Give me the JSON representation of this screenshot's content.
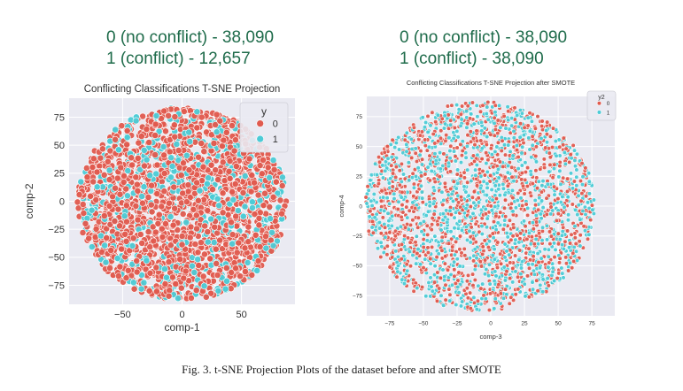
{
  "counts": {
    "left": {
      "line1": "0 (no conflict) - 38,090",
      "line2": "1 (conflict) - 12,657"
    },
    "right": {
      "line1": "0 (no conflict) - 38,090",
      "line2": "1 (conflict) - 38,090"
    }
  },
  "caption": "Fig. 3.  t-SNE Projection Plots of the dataset before and after SMOTE",
  "colors": {
    "class0": "#e05a4e",
    "class1": "#4ccbd6",
    "background": "#eaeaf2",
    "grid": "#ffffff",
    "count_text": "#1e6b4a"
  },
  "chart_data": [
    {
      "type": "scatter",
      "title": "Conflicting Classifications T-SNE Projection",
      "xlabel": "comp-1",
      "ylabel": "comp-2",
      "xlim": [
        -95,
        95
      ],
      "ylim": [
        -92,
        92
      ],
      "xticks": [
        -50,
        0,
        50
      ],
      "xtick_labels": [
        "−50",
        "0",
        "50"
      ],
      "yticks": [
        75,
        50,
        25,
        0,
        -25,
        -50,
        -75
      ],
      "ytick_labels": [
        "75",
        "50",
        "25",
        "0",
        "−25",
        "−50",
        "−75"
      ],
      "grid": true,
      "legend": {
        "title": "y",
        "placement": "top-right",
        "entries": [
          "0",
          "1"
        ]
      },
      "series": [
        {
          "name": "0",
          "count": 38090
        },
        {
          "name": "1",
          "count": 12657
        }
      ]
    },
    {
      "type": "scatter",
      "title": "Conflicting Classifications T-SNE Projection after SMOTE",
      "xlabel": "comp-3",
      "ylabel": "comp-4",
      "xlim": [
        -92,
        92
      ],
      "ylim": [
        -92,
        92
      ],
      "xticks": [
        -75,
        -50,
        -25,
        0,
        25,
        50,
        75
      ],
      "xtick_labels": [
        "−75",
        "−50",
        "−25",
        "0",
        "25",
        "50",
        "75"
      ],
      "yticks": [
        75,
        50,
        25,
        0,
        -25,
        -50,
        -75
      ],
      "ytick_labels": [
        "75",
        "50",
        "25",
        "0",
        "−25",
        "−50",
        "−75"
      ],
      "grid": true,
      "legend": {
        "title": "y2",
        "placement": "top-right",
        "entries": [
          "0",
          "1"
        ]
      },
      "series": [
        {
          "name": "0",
          "count": 38090
        },
        {
          "name": "1",
          "count": 38090
        }
      ]
    }
  ]
}
